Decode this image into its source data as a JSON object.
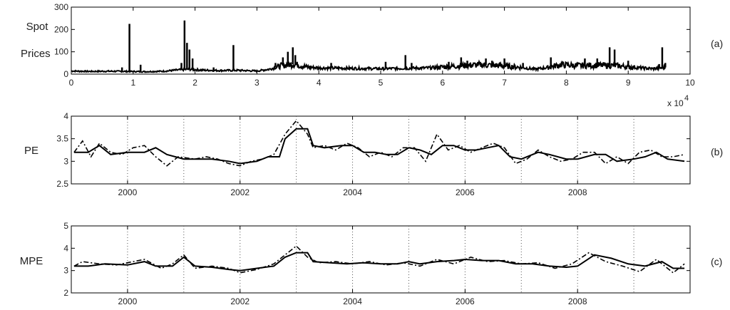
{
  "chart_data": [
    {
      "type": "line",
      "panel": "(a)",
      "ylabel_lines": [
        "Spot",
        "Prices"
      ],
      "xlim": [
        0,
        10
      ],
      "ylim": [
        0,
        300
      ],
      "xticks": [
        0,
        1,
        2,
        3,
        4,
        5,
        6,
        7,
        8,
        9,
        10
      ],
      "yticks": [
        0,
        100,
        200,
        300
      ],
      "x_multiplier": "x 10",
      "x_multiplier_exp": "4",
      "grid": false,
      "baseline": [
        [
          0,
          14
        ],
        [
          0.3,
          12
        ],
        [
          0.6,
          13
        ],
        [
          0.9,
          12
        ],
        [
          1.2,
          11
        ],
        [
          1.5,
          13
        ],
        [
          1.7,
          18
        ],
        [
          1.9,
          22
        ],
        [
          2.1,
          18
        ],
        [
          2.4,
          16
        ],
        [
          2.7,
          17
        ],
        [
          3.0,
          14
        ],
        [
          3.2,
          22
        ],
        [
          3.4,
          38
        ],
        [
          3.6,
          45
        ],
        [
          3.8,
          32
        ],
        [
          4.0,
          28
        ],
        [
          4.5,
          26
        ],
        [
          5.0,
          24
        ],
        [
          5.4,
          26
        ],
        [
          5.8,
          28
        ],
        [
          6.0,
          32
        ],
        [
          6.3,
          38
        ],
        [
          6.6,
          42
        ],
        [
          6.9,
          38
        ],
        [
          7.2,
          32
        ],
        [
          7.5,
          22
        ],
        [
          7.7,
          30
        ],
        [
          7.9,
          42
        ],
        [
          8.2,
          38
        ],
        [
          8.5,
          40
        ],
        [
          8.8,
          38
        ],
        [
          9.1,
          30
        ],
        [
          9.4,
          24
        ],
        [
          9.6,
          30
        ]
      ],
      "spikes": [
        [
          0.82,
          30
        ],
        [
          0.94,
          225
        ],
        [
          1.12,
          42
        ],
        [
          1.6,
          20
        ],
        [
          1.78,
          50
        ],
        [
          1.83,
          240
        ],
        [
          1.87,
          140
        ],
        [
          1.91,
          110
        ],
        [
          1.96,
          70
        ],
        [
          2.3,
          30
        ],
        [
          2.62,
          130
        ],
        [
          3.3,
          50
        ],
        [
          3.42,
          75
        ],
        [
          3.5,
          100
        ],
        [
          3.58,
          120
        ],
        [
          3.62,
          85
        ],
        [
          4.2,
          50
        ],
        [
          5.08,
          55
        ],
        [
          5.4,
          85
        ],
        [
          5.5,
          50
        ],
        [
          6.1,
          55
        ],
        [
          6.3,
          75
        ],
        [
          6.4,
          60
        ],
        [
          6.7,
          70
        ],
        [
          6.8,
          60
        ],
        [
          7.0,
          70
        ],
        [
          7.3,
          50
        ],
        [
          7.75,
          75
        ],
        [
          8.3,
          70
        ],
        [
          8.5,
          70
        ],
        [
          8.7,
          120
        ],
        [
          8.78,
          110
        ],
        [
          9.0,
          60
        ],
        [
          9.5,
          45
        ],
        [
          9.55,
          120
        ],
        [
          9.6,
          50
        ]
      ],
      "series": [
        {
          "name": "",
          "color": "#000000"
        }
      ]
    },
    {
      "type": "line",
      "panel": "(b)",
      "ylabel": "PE",
      "xlim": [
        1999,
        2010
      ],
      "ylim": [
        2.5,
        4
      ],
      "yticks": [
        2.5,
        3,
        3.5,
        4
      ],
      "xticks": [
        2000,
        2002,
        2004,
        2006,
        2008
      ],
      "vlines": [
        2000,
        2001,
        2002,
        2003,
        2004,
        2005,
        2006,
        2007,
        2008,
        2009
      ],
      "series": [
        {
          "name": "",
          "style": "solid",
          "color": "#000000",
          "points": [
            [
              1999.05,
              3.2
            ],
            [
              1999.3,
              3.2
            ],
            [
              1999.5,
              3.35
            ],
            [
              1999.7,
              3.15
            ],
            [
              2000.0,
              3.2
            ],
            [
              2000.3,
              3.2
            ],
            [
              2000.5,
              3.3
            ],
            [
              2000.7,
              3.15
            ],
            [
              2001.0,
              3.05
            ],
            [
              2001.3,
              3.05
            ],
            [
              2001.5,
              3.05
            ],
            [
              2001.8,
              3.0
            ],
            [
              2002.0,
              2.95
            ],
            [
              2002.3,
              3.0
            ],
            [
              2002.5,
              3.1
            ],
            [
              2002.7,
              3.1
            ],
            [
              2002.8,
              3.5
            ],
            [
              2003.0,
              3.72
            ],
            [
              2003.2,
              3.72
            ],
            [
              2003.3,
              3.35
            ],
            [
              2003.5,
              3.3
            ],
            [
              2003.8,
              3.35
            ],
            [
              2004.0,
              3.35
            ],
            [
              2004.2,
              3.2
            ],
            [
              2004.4,
              3.2
            ],
            [
              2004.6,
              3.15
            ],
            [
              2004.8,
              3.15
            ],
            [
              2005.0,
              3.3
            ],
            [
              2005.2,
              3.25
            ],
            [
              2005.4,
              3.15
            ],
            [
              2005.6,
              3.35
            ],
            [
              2005.8,
              3.35
            ],
            [
              2006.0,
              3.25
            ],
            [
              2006.2,
              3.25
            ],
            [
              2006.4,
              3.3
            ],
            [
              2006.6,
              3.35
            ],
            [
              2006.8,
              3.1
            ],
            [
              2007.0,
              3.05
            ],
            [
              2007.3,
              3.2
            ],
            [
              2007.5,
              3.15
            ],
            [
              2007.8,
              3.05
            ],
            [
              2008.0,
              3.05
            ],
            [
              2008.3,
              3.15
            ],
            [
              2008.5,
              3.15
            ],
            [
              2008.7,
              3.0
            ],
            [
              2009.0,
              3.05
            ],
            [
              2009.2,
              3.1
            ],
            [
              2009.4,
              3.2
            ],
            [
              2009.6,
              3.05
            ],
            [
              2009.9,
              3.0
            ]
          ]
        },
        {
          "name": "",
          "style": "dashed",
          "color": "#000000",
          "points": [
            [
              1999.05,
              3.2
            ],
            [
              1999.2,
              3.45
            ],
            [
              1999.35,
              3.1
            ],
            [
              1999.5,
              3.4
            ],
            [
              1999.7,
              3.2
            ],
            [
              1999.9,
              3.15
            ],
            [
              2000.1,
              3.3
            ],
            [
              2000.3,
              3.35
            ],
            [
              2000.5,
              3.1
            ],
            [
              2000.7,
              2.9
            ],
            [
              2000.9,
              3.1
            ],
            [
              2001.2,
              3.05
            ],
            [
              2001.4,
              3.1
            ],
            [
              2001.6,
              3.05
            ],
            [
              2001.8,
              2.95
            ],
            [
              2002.0,
              2.9
            ],
            [
              2002.2,
              3.0
            ],
            [
              2002.4,
              3.05
            ],
            [
              2002.6,
              3.15
            ],
            [
              2002.8,
              3.6
            ],
            [
              2003.0,
              3.9
            ],
            [
              2003.2,
              3.6
            ],
            [
              2003.3,
              3.3
            ],
            [
              2003.5,
              3.35
            ],
            [
              2003.7,
              3.25
            ],
            [
              2003.9,
              3.4
            ],
            [
              2004.1,
              3.3
            ],
            [
              2004.3,
              3.1
            ],
            [
              2004.5,
              3.2
            ],
            [
              2004.7,
              3.1
            ],
            [
              2004.9,
              3.3
            ],
            [
              2005.1,
              3.3
            ],
            [
              2005.3,
              3.0
            ],
            [
              2005.5,
              3.6
            ],
            [
              2005.7,
              3.25
            ],
            [
              2005.9,
              3.35
            ],
            [
              2006.1,
              3.2
            ],
            [
              2006.3,
              3.3
            ],
            [
              2006.5,
              3.4
            ],
            [
              2006.7,
              3.3
            ],
            [
              2006.9,
              2.95
            ],
            [
              2007.1,
              3.05
            ],
            [
              2007.3,
              3.25
            ],
            [
              2007.5,
              3.1
            ],
            [
              2007.7,
              3.0
            ],
            [
              2007.9,
              3.05
            ],
            [
              2008.1,
              3.2
            ],
            [
              2008.3,
              3.2
            ],
            [
              2008.5,
              2.95
            ],
            [
              2008.7,
              3.1
            ],
            [
              2008.9,
              2.95
            ],
            [
              2009.1,
              3.2
            ],
            [
              2009.3,
              3.25
            ],
            [
              2009.5,
              3.1
            ],
            [
              2009.7,
              3.1
            ],
            [
              2009.9,
              3.15
            ]
          ]
        }
      ]
    },
    {
      "type": "line",
      "panel": "(c)",
      "ylabel": "MPE",
      "xlim": [
        1999,
        2010
      ],
      "ylim": [
        2,
        5
      ],
      "yticks": [
        2,
        3,
        4,
        5
      ],
      "xticks": [
        2000,
        2002,
        2004,
        2006,
        2008
      ],
      "vlines": [
        2000,
        2001,
        2002,
        2003,
        2004,
        2005,
        2006,
        2007,
        2008,
        2009
      ],
      "series": [
        {
          "name": "",
          "style": "solid",
          "color": "#000000",
          "points": [
            [
              1999.05,
              3.2
            ],
            [
              1999.3,
              3.2
            ],
            [
              1999.6,
              3.3
            ],
            [
              2000.0,
              3.25
            ],
            [
              2000.3,
              3.4
            ],
            [
              2000.5,
              3.2
            ],
            [
              2000.8,
              3.2
            ],
            [
              2001.0,
              3.6
            ],
            [
              2001.2,
              3.2
            ],
            [
              2001.5,
              3.15
            ],
            [
              2001.8,
              3.05
            ],
            [
              2002.0,
              3.0
            ],
            [
              2002.3,
              3.1
            ],
            [
              2002.6,
              3.2
            ],
            [
              2002.8,
              3.6
            ],
            [
              2003.0,
              3.8
            ],
            [
              2003.2,
              3.8
            ],
            [
              2003.3,
              3.4
            ],
            [
              2003.6,
              3.35
            ],
            [
              2003.9,
              3.3
            ],
            [
              2004.2,
              3.35
            ],
            [
              2004.5,
              3.3
            ],
            [
              2004.8,
              3.3
            ],
            [
              2005.0,
              3.4
            ],
            [
              2005.2,
              3.3
            ],
            [
              2005.5,
              3.4
            ],
            [
              2005.8,
              3.45
            ],
            [
              2006.0,
              3.5
            ],
            [
              2006.3,
              3.45
            ],
            [
              2006.6,
              3.45
            ],
            [
              2006.9,
              3.3
            ],
            [
              2007.2,
              3.3
            ],
            [
              2007.5,
              3.2
            ],
            [
              2007.8,
              3.15
            ],
            [
              2008.0,
              3.2
            ],
            [
              2008.3,
              3.7
            ],
            [
              2008.6,
              3.55
            ],
            [
              2008.9,
              3.3
            ],
            [
              2009.2,
              3.2
            ],
            [
              2009.5,
              3.4
            ],
            [
              2009.7,
              3.1
            ],
            [
              2009.9,
              3.1
            ]
          ]
        },
        {
          "name": "",
          "style": "dashed",
          "color": "#000000",
          "points": [
            [
              1999.05,
              3.2
            ],
            [
              1999.2,
              3.4
            ],
            [
              1999.5,
              3.3
            ],
            [
              1999.8,
              3.25
            ],
            [
              2000.1,
              3.4
            ],
            [
              2000.3,
              3.5
            ],
            [
              2000.6,
              3.1
            ],
            [
              2000.8,
              3.3
            ],
            [
              2001.0,
              3.7
            ],
            [
              2001.2,
              3.1
            ],
            [
              2001.5,
              3.2
            ],
            [
              2001.8,
              3.1
            ],
            [
              2002.0,
              2.9
            ],
            [
              2002.3,
              3.05
            ],
            [
              2002.6,
              3.3
            ],
            [
              2002.8,
              3.7
            ],
            [
              2003.0,
              4.1
            ],
            [
              2003.2,
              3.6
            ],
            [
              2003.4,
              3.35
            ],
            [
              2003.7,
              3.4
            ],
            [
              2004.0,
              3.3
            ],
            [
              2004.3,
              3.4
            ],
            [
              2004.6,
              3.25
            ],
            [
              2004.9,
              3.35
            ],
            [
              2005.2,
              3.2
            ],
            [
              2005.5,
              3.5
            ],
            [
              2005.8,
              3.3
            ],
            [
              2006.1,
              3.6
            ],
            [
              2006.4,
              3.4
            ],
            [
              2006.7,
              3.45
            ],
            [
              2007.0,
              3.3
            ],
            [
              2007.3,
              3.35
            ],
            [
              2007.6,
              3.1
            ],
            [
              2007.9,
              3.3
            ],
            [
              2008.2,
              3.8
            ],
            [
              2008.5,
              3.4
            ],
            [
              2008.8,
              3.2
            ],
            [
              2009.1,
              2.95
            ],
            [
              2009.4,
              3.5
            ],
            [
              2009.7,
              2.9
            ],
            [
              2009.9,
              3.3
            ]
          ]
        }
      ]
    }
  ]
}
